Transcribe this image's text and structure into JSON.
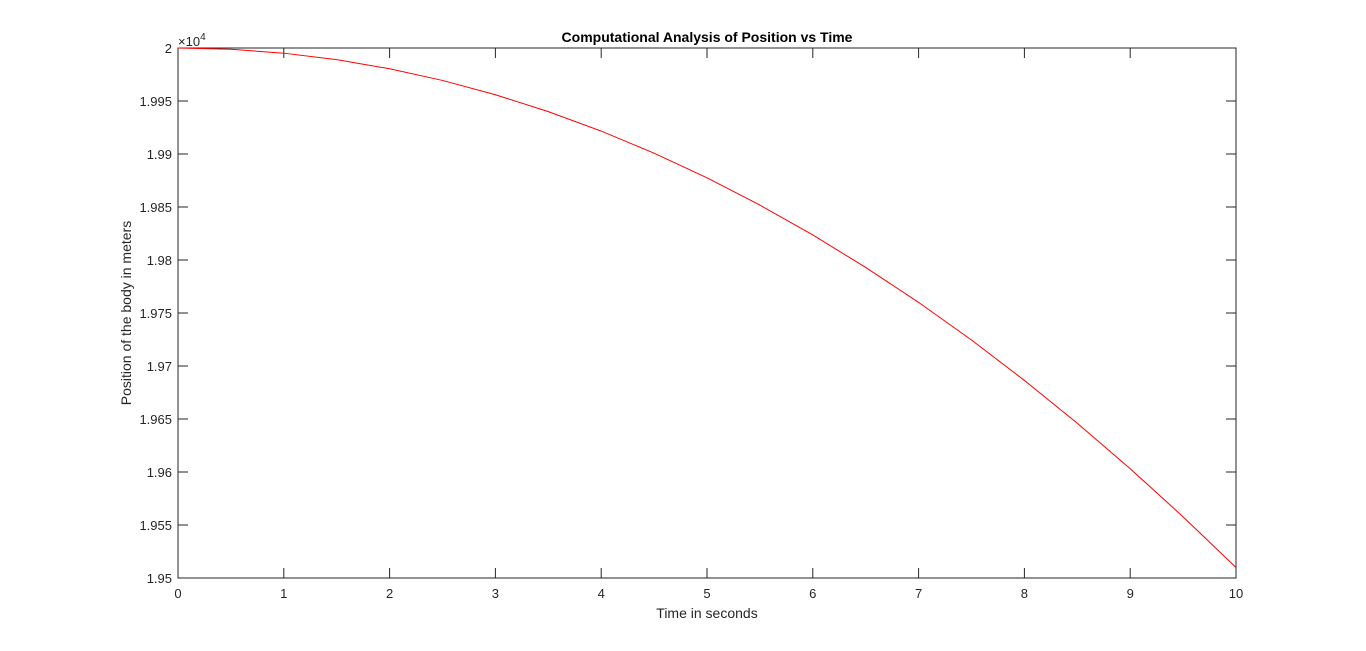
{
  "chart_data": {
    "type": "line",
    "title": "Computational Analysis of Position vs Time",
    "xlabel": "Time in seconds",
    "ylabel": "Position of the body in meters",
    "y_exponent_base": "×10",
    "y_exponent_power": "4",
    "y_exponent_multiplier": 10000,
    "xlim": [
      0,
      10
    ],
    "ylim": [
      19500,
      20000
    ],
    "x_ticks": [
      0,
      1,
      2,
      3,
      4,
      5,
      6,
      7,
      8,
      9,
      10
    ],
    "x_tick_labels": [
      "0",
      "1",
      "2",
      "3",
      "4",
      "5",
      "6",
      "7",
      "8",
      "9",
      "10"
    ],
    "y_ticks": [
      19500,
      19550,
      19600,
      19650,
      19700,
      19750,
      19800,
      19850,
      19900,
      19950,
      20000
    ],
    "y_tick_labels": [
      "1.95",
      "1.955",
      "1.96",
      "1.965",
      "1.97",
      "1.975",
      "1.98",
      "1.985",
      "1.99",
      "1.995",
      "2"
    ],
    "grid": false,
    "box": true,
    "series": [
      {
        "color": "#ff0000",
        "x": [
          0,
          0.5,
          1,
          1.5,
          2,
          2.5,
          3,
          3.5,
          4,
          4.5,
          5,
          5.5,
          6,
          6.5,
          7,
          7.5,
          8,
          8.5,
          9,
          9.5,
          10
        ],
        "y": [
          20000,
          19998.8,
          19995.1,
          19989,
          19980.4,
          19969.4,
          19955.9,
          19940,
          19921.6,
          19900.8,
          19877.5,
          19851.8,
          19823.6,
          19793,
          19760,
          19724.5,
          19686.4,
          19646,
          19603.1,
          19557.7,
          19509.9
        ]
      }
    ]
  }
}
